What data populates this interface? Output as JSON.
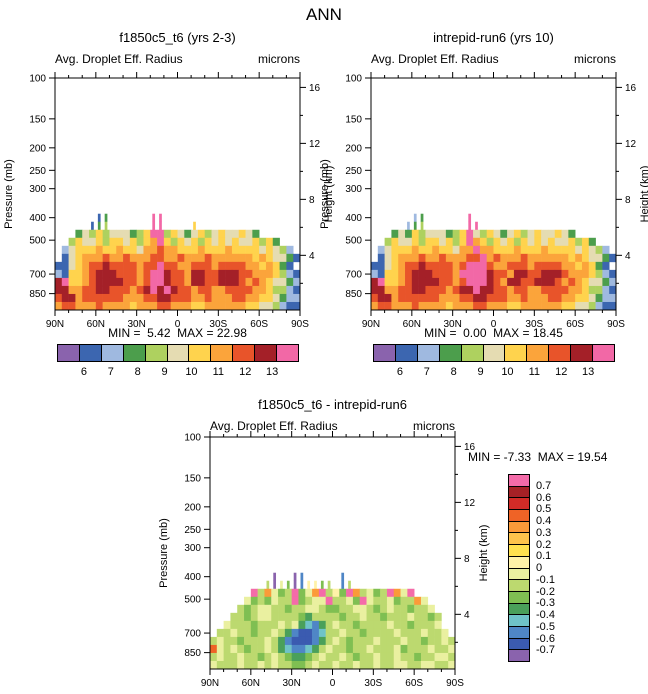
{
  "page": {
    "title": "ANN"
  },
  "chart_data": {
    "type": "heatmap",
    "description": "Zonal-mean latitude vs pressure filled contour plots of average droplet effective radius: two model cases and their difference",
    "axes": {
      "pressure_label": "Pressure (mb)",
      "height_label": "Height (km)",
      "pressure_ticks": [
        100,
        150,
        200,
        250,
        300,
        400,
        500,
        700,
        850
      ],
      "pressure_range": [
        100,
        1000
      ],
      "height_ticks": [
        16,
        12,
        8,
        4
      ],
      "lat_ticks": [
        "90N",
        "60N",
        "30N",
        "0",
        "30S",
        "60S",
        "90S"
      ]
    },
    "colorbars": {
      "top": {
        "labels": [
          "6",
          "7",
          "8",
          "9",
          "10",
          "11",
          "12",
          "13"
        ],
        "colors": [
          "#8a63ad",
          "#3c66b0",
          "#9fb9e0",
          "#4c9e4c",
          "#aed15f",
          "#e5dcb2",
          "#ffd34d",
          "#fba43b",
          "#e8542a",
          "#a42028",
          "#f268a6"
        ]
      },
      "diff": {
        "labels": [
          "0.7",
          "0.6",
          "0.5",
          "0.4",
          "0.3",
          "0.2",
          "0.1",
          "0",
          "-0.1",
          "-0.2",
          "-0.3",
          "-0.4",
          "-0.5",
          "-0.6",
          "-0.7"
        ],
        "colors": [
          "#f46ba9",
          "#a62126",
          "#d22b27",
          "#ef6326",
          "#fb9a39",
          "#fdc34c",
          "#ffe14f",
          "#fff2a8",
          "#eaf0a0",
          "#bcd96f",
          "#7fbf52",
          "#4aa05a",
          "#6fc3c8",
          "#4f86c6",
          "#3b5bb0",
          "#8a63ad"
        ]
      }
    },
    "panels": [
      {
        "id": "model1",
        "title": "f1850c5_t6 (yrs 2-3)",
        "subtitle": "Avg. Droplet Eff. Radius",
        "units": "microns",
        "stats": "MIN =  5.42  MAX = 22.98",
        "min": 5.42,
        "max": 22.98,
        "colorbar": "top",
        "field": [
          "......13......AA....................",
          ".....134......AA....6...............",
          "...35464555346AA46535645655653......",
          "..4655646656467A64656465656556463...",
          ".2566676676657787766676667666656542.",
          ".15677787787778877877787777776765531",
          "115678898888788A8877888788887767631.",
          "21667899988878AA98879988999887776421",
          "9A667899998878AA98879988999878765532",
          "99778899888789A9A9887887788887764421",
          "899788888877788998887787778877665322",
          "788777877776777887776677777766554211"
        ]
      },
      {
        "id": "model2",
        "title": "intrepid-run6 (yrs 10)",
        "subtitle": "Avg. Droplet Eff. Radius",
        "units": "microns",
        "stats": "MIN =  0.00  MAX = 18.45",
        "min": 0.0,
        "max": 18.45,
        "colorbar": "top",
        "field": [
          "......23......A.....................",
          ".....234......AA....................",
          "...35364555346A546535645655653......",
          "..465564665646A764656465656556463...",
          ".25666766766577A7766676667666656542.",
          ".156777877877788A7877787777776765531",
          "11567889888878AAA877888788887767631.",
          "2166789998887AAAA9887998899987776421",
          "9A667899998878AAA9879988999878765532",
          "997788998887899A99887887788887764421",
          "899788888877788998887787778877665322",
          "788777877776777887776677777766554211"
        ]
      },
      {
        "id": "diff",
        "title": "f1850c5_t6 - intrepid-run6",
        "subtitle": "Avg. Droplet Eff. Radius",
        "units": "microns",
        "stats": "MIN = -7.33  MAX = 19.54",
        "min": -7.33,
        "max": 19.54,
        "colorbar": "diff",
        "field": [
          ".........F..FD.....D................",
          "........9F8AFD77A9.D9...............",
          "......0948A90A84097A0498A90480......",
          ".....8A9A8990A9880998A08998A9948....",
          "....9A98899A99889AA99889A9899A998...",
          "...99A9889999AB9999A99899A999899A9..",
          "..8999A999898BCDB9899A9999899A9998..",
          ".99899A9989BDEEDC99899A999989998998.",
          "9899A99989BDEEEDB989A9998999899A9989",
          "38989A9989BCDDCB9899A9989998A9998998",
          "9899899A989ABBA989989A99899899A99889",
          "899989989899AA9899899899899889988998"
        ]
      }
    ]
  }
}
